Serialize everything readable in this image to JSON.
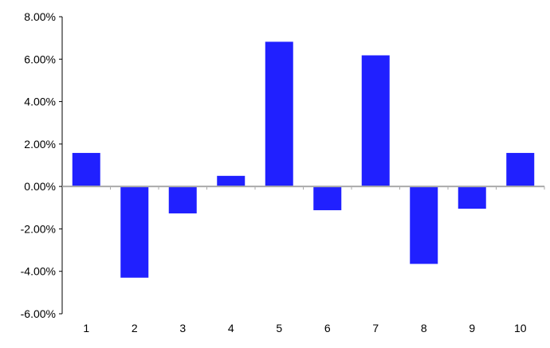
{
  "chart_data": {
    "type": "bar",
    "title": "",
    "xlabel": "",
    "ylabel": "",
    "categories": [
      "1",
      "2",
      "3",
      "4",
      "5",
      "6",
      "7",
      "8",
      "9",
      "10"
    ],
    "values": [
      1.58,
      -4.3,
      -1.27,
      0.5,
      6.82,
      -1.12,
      6.18,
      -3.65,
      -1.05,
      1.58
    ],
    "value_unit": "%",
    "ylim": [
      -6,
      8
    ],
    "yticks": [
      8,
      6,
      4,
      2,
      0,
      -2,
      -4,
      -6
    ],
    "ytick_labels": [
      "8.00%",
      "6.00%",
      "4.00%",
      "2.00%",
      "0.00%",
      "-2.00%",
      "-4.00%",
      "-6.00%"
    ],
    "grid": false,
    "legend": "none",
    "colors": {
      "bar": "#2020ff",
      "zero_line": "#aaaaaa",
      "axis": "#000000"
    }
  }
}
